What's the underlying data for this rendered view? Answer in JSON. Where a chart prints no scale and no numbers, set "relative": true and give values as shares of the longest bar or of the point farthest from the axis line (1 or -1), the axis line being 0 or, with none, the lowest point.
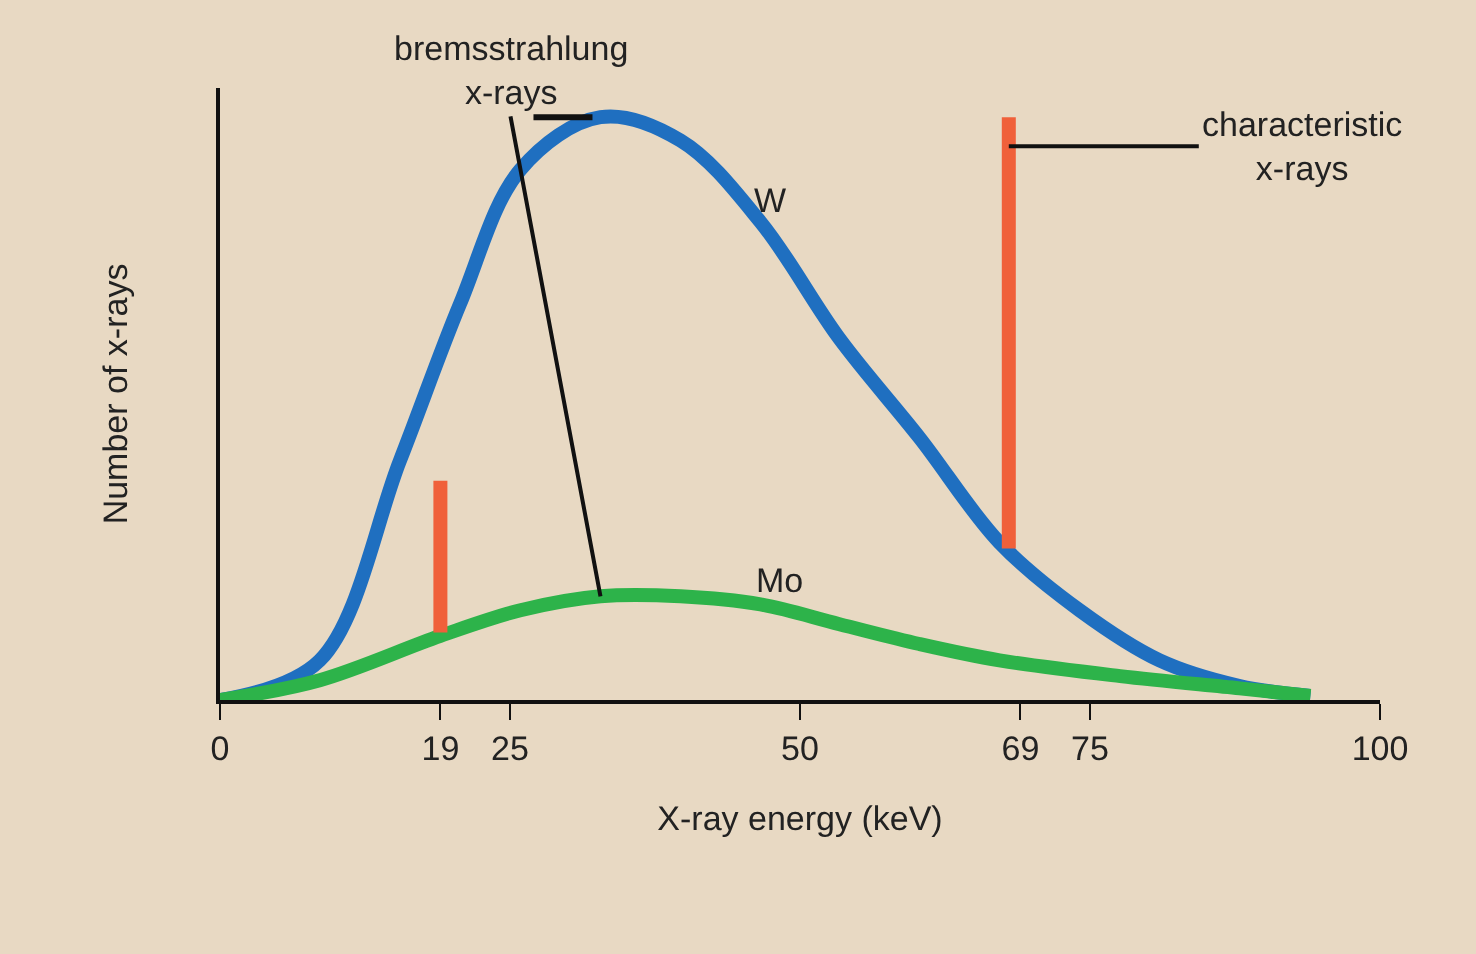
{
  "chart_data": {
    "type": "line",
    "relative": true,
    "xlabel": "X-ray energy (keV)",
    "ylabel": "Number of x-rays",
    "xlim": [
      0,
      100
    ],
    "xticks": [
      0,
      19,
      25,
      50,
      69,
      75,
      100
    ],
    "tick_labels": "x",
    "grid": false,
    "legend": false,
    "marker": "none",
    "line_style": "solid",
    "series": [
      {
        "name": "W",
        "color": "#1f6fc0",
        "x": [
          0,
          8.6,
          15.5,
          20.7,
          25.9,
          32.8,
          39.7,
          46.6,
          53.4,
          60.3,
          67.2,
          74.1,
          81,
          87.9,
          94
        ],
        "values": [
          0,
          0.068,
          0.41,
          0.68,
          0.91,
          1.0,
          0.96,
          0.82,
          0.62,
          0.45,
          0.27,
          0.154,
          0.068,
          0.024,
          0.007
        ]
      },
      {
        "name": "Mo",
        "color": "#2db34a",
        "x": [
          0,
          8.6,
          19,
          25.9,
          32.8,
          39.7,
          46.6,
          53.4,
          60.3,
          67.2,
          77.6,
          87.9,
          94
        ],
        "values": [
          0,
          0.034,
          0.11,
          0.154,
          0.178,
          0.178,
          0.164,
          0.13,
          0.096,
          0.068,
          0.041,
          0.02,
          0.007
        ]
      },
      {
        "type": "line",
        "color": "#f0603a",
        "x": [
          19,
          19
        ],
        "values": [
          0.116,
          0.376
        ]
      },
      {
        "type": "line",
        "color": "#f0603a",
        "x": [
          68,
          68
        ],
        "values": [
          0.26,
          1.0
        ]
      }
    ],
    "annotations": [
      {
        "text": "bremsstrahlung\nx-rays",
        "x": 32.8,
        "y": 0.178
      },
      {
        "text": "characteristic\nx-rays",
        "x": 68,
        "y": 0.95
      }
    ]
  }
}
